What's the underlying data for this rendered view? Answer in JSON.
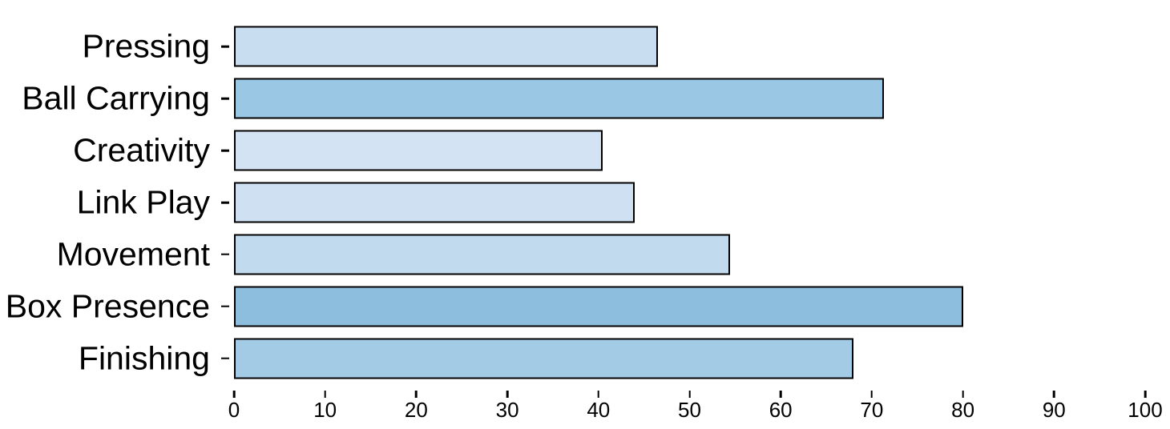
{
  "chart_data": {
    "type": "bar",
    "orientation": "horizontal",
    "title": "",
    "xlabel": "",
    "ylabel": "",
    "categories": [
      "Pressing",
      "Ball Carrying",
      "Creativity",
      "Link Play",
      "Movement",
      "Box Presence",
      "Finishing"
    ],
    "values": [
      46.5,
      71.3,
      40.5,
      44,
      54.4,
      80,
      68
    ],
    "bar_colors": [
      "#c9ddf0",
      "#9ac7e4",
      "#d4e3f3",
      "#cee0f1",
      "#c2daee",
      "#8ebedd",
      "#a4cbe6"
    ],
    "bar_edge_color": "#000000",
    "xlim": [
      0,
      100
    ],
    "x_ticks": [
      0,
      10,
      20,
      30,
      40,
      50,
      60,
      70,
      80,
      90,
      100
    ],
    "grid": false,
    "legend": null,
    "background": "#ffffff",
    "text_color": "#000000"
  }
}
